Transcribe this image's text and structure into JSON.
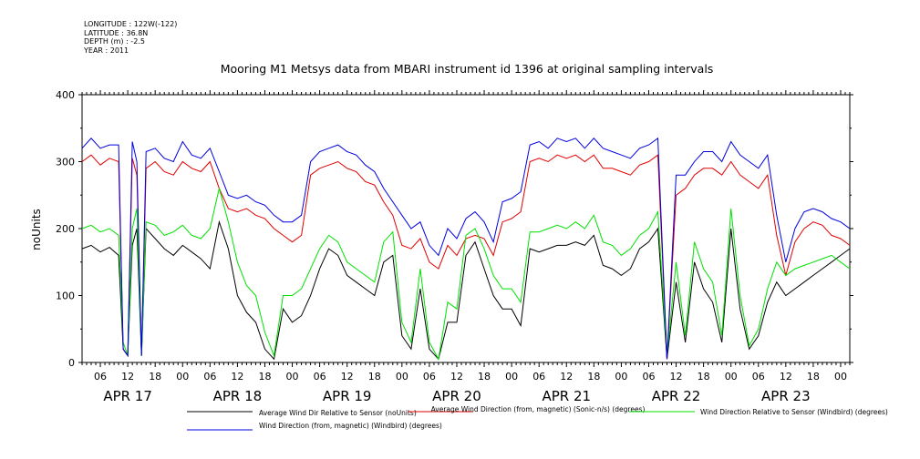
{
  "header": {
    "longitude": "LONGITUDE : 122W(-122)",
    "latitude": "LATITUDE : 36.8N",
    "depth": "DEPTH (m) : -2.5",
    "year": "YEAR : 2011"
  },
  "chart_data": {
    "type": "line",
    "title": "Mooring M1 Metsys data from MBARI instrument id 1396 at original sampling intervals",
    "ylabel": "noUnits",
    "xlabel": "",
    "ylim": [
      0,
      400
    ],
    "y_ticks": [
      "0",
      "100",
      "200",
      "300",
      "400"
    ],
    "xlim_hours": [
      2,
      170
    ],
    "x_tick_labels": [
      "06",
      "12",
      "18",
      "00",
      "06",
      "12",
      "18",
      "00",
      "06",
      "12",
      "18",
      "00",
      "06",
      "12",
      "18",
      "00",
      "06",
      "12",
      "18",
      "00",
      "06",
      "12",
      "18",
      "00",
      "06",
      "12",
      "18",
      "00",
      "06",
      "12",
      "18",
      "00"
    ],
    "x_tick_hours": [
      6,
      12,
      18,
      24,
      30,
      36,
      42,
      48,
      54,
      60,
      66,
      72,
      78,
      84,
      90,
      96,
      102,
      108,
      114,
      120,
      126,
      132,
      138,
      144,
      150,
      156,
      162,
      168
    ],
    "date_labels": [
      {
        "label": "APR 17",
        "hour": 12
      },
      {
        "label": "APR 18",
        "hour": 36
      },
      {
        "label": "APR 19",
        "hour": 60
      },
      {
        "label": "APR 20",
        "hour": 84
      },
      {
        "label": "APR 21",
        "hour": 108
      },
      {
        "label": "APR 22",
        "hour": 132
      },
      {
        "label": "APR 23",
        "hour": 156
      }
    ],
    "grid": false,
    "legend_position": "bottom",
    "x": [
      2,
      4,
      6,
      8,
      10,
      11,
      12,
      13,
      14,
      15,
      16,
      18,
      20,
      22,
      24,
      26,
      28,
      30,
      32,
      34,
      36,
      38,
      40,
      42,
      44,
      46,
      48,
      50,
      52,
      54,
      56,
      58,
      60,
      62,
      64,
      66,
      68,
      70,
      72,
      74,
      76,
      78,
      80,
      82,
      84,
      86,
      88,
      90,
      92,
      94,
      96,
      98,
      100,
      102,
      104,
      106,
      108,
      110,
      112,
      114,
      116,
      118,
      120,
      122,
      124,
      126,
      128,
      130,
      132,
      134,
      136,
      138,
      140,
      142,
      144,
      146,
      148,
      150,
      152,
      154,
      156,
      158,
      160,
      162,
      164,
      166,
      168,
      170
    ],
    "series": [
      {
        "name": "Average Wind Dir Relative to Sensor (noUnits)",
        "color": "#000000",
        "values": [
          170,
          175,
          165,
          172,
          160,
          20,
          10,
          175,
          200,
          10,
          200,
          185,
          170,
          160,
          175,
          165,
          155,
          140,
          210,
          170,
          100,
          75,
          60,
          20,
          5,
          80,
          60,
          70,
          100,
          140,
          170,
          160,
          130,
          120,
          110,
          100,
          150,
          160,
          40,
          20,
          110,
          20,
          5,
          60,
          60,
          160,
          180,
          140,
          100,
          80,
          80,
          55,
          170,
          165,
          170,
          175,
          175,
          180,
          175,
          190,
          145,
          140,
          130,
          140,
          170,
          180,
          200,
          5,
          120,
          30,
          150,
          110,
          90,
          30,
          200,
          80,
          20,
          40,
          90,
          120,
          100,
          110,
          120,
          130,
          140,
          150,
          160,
          170
        ]
      },
      {
        "name": "Average Wind Direction (from, magnetic) (Sonic-n/s) (degrees)",
        "color": "#e00000",
        "values": [
          300,
          310,
          295,
          305,
          300,
          20,
          10,
          305,
          280,
          10,
          290,
          300,
          285,
          280,
          300,
          290,
          285,
          300,
          260,
          230,
          225,
          230,
          220,
          215,
          200,
          190,
          180,
          190,
          280,
          290,
          295,
          300,
          290,
          285,
          270,
          265,
          240,
          220,
          175,
          170,
          185,
          150,
          140,
          175,
          160,
          185,
          190,
          185,
          160,
          210,
          215,
          225,
          300,
          305,
          300,
          310,
          305,
          310,
          300,
          310,
          290,
          290,
          285,
          280,
          295,
          300,
          310,
          5,
          250,
          260,
          280,
          290,
          290,
          280,
          300,
          280,
          270,
          260,
          280,
          190,
          130,
          180,
          200,
          210,
          205,
          190,
          185,
          175
        ]
      },
      {
        "name": "Wind Direction Relative to Sensor (Windbird) (degrees)",
        "color": "#00e000",
        "values": [
          200,
          205,
          195,
          200,
          190,
          30,
          10,
          200,
          230,
          10,
          210,
          205,
          190,
          195,
          205,
          190,
          185,
          200,
          260,
          210,
          150,
          115,
          100,
          45,
          10,
          100,
          100,
          110,
          140,
          170,
          190,
          180,
          150,
          140,
          130,
          120,
          180,
          195,
          60,
          30,
          140,
          30,
          5,
          90,
          80,
          190,
          200,
          170,
          130,
          110,
          110,
          90,
          195,
          195,
          200,
          205,
          200,
          210,
          200,
          220,
          180,
          175,
          160,
          170,
          190,
          200,
          225,
          10,
          150,
          40,
          180,
          140,
          120,
          40,
          230,
          100,
          25,
          50,
          110,
          150,
          130,
          140,
          145,
          150,
          155,
          160,
          150,
          140
        ]
      },
      {
        "name": "Wind Direction (from, magnetic) (Windbird) (degrees)",
        "color": "#0000e0",
        "values": [
          320,
          335,
          320,
          325,
          325,
          20,
          10,
          330,
          300,
          10,
          315,
          320,
          305,
          300,
          330,
          310,
          305,
          320,
          285,
          250,
          245,
          250,
          240,
          235,
          220,
          210,
          210,
          220,
          300,
          315,
          320,
          325,
          315,
          310,
          295,
          285,
          260,
          240,
          220,
          200,
          210,
          175,
          160,
          200,
          185,
          215,
          225,
          210,
          180,
          240,
          245,
          255,
          325,
          330,
          320,
          335,
          330,
          335,
          320,
          335,
          320,
          315,
          310,
          305,
          320,
          325,
          335,
          5,
          280,
          280,
          300,
          315,
          315,
          300,
          330,
          310,
          300,
          290,
          310,
          220,
          150,
          200,
          225,
          230,
          225,
          215,
          210,
          200
        ]
      }
    ]
  }
}
